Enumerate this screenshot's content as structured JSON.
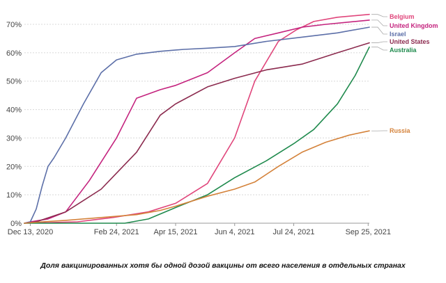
{
  "caption": "Доля вакцинированных хотя бы одной дозой вакцины от всего населения в отдельных странах",
  "chart_data": {
    "type": "line",
    "title": "",
    "xlabel": "",
    "ylabel": "",
    "x_ticks": [
      "Dec 13, 2020",
      "Feb 24, 2021",
      "Apr 15, 2021",
      "Jun 4, 2021",
      "Jul 24, 2021",
      "Sep 25, 2021"
    ],
    "x_tick_days": [
      0,
      73,
      123,
      173,
      223,
      286
    ],
    "y_ticks": [
      "0%",
      "10%",
      "20%",
      "30%",
      "40%",
      "50%",
      "60%",
      "70%"
    ],
    "ylim": [
      0,
      72
    ],
    "xlim": [
      -5,
      287
    ],
    "grid": "horizontal dotted",
    "series": [
      {
        "name": "Belgium",
        "color": "#e0457b",
        "x": [
          -5,
          40,
          70,
          100,
          123,
          150,
          173,
          190,
          210,
          225,
          240,
          260,
          287
        ],
        "y": [
          0,
          0.5,
          2,
          4,
          7,
          14,
          30,
          50,
          64,
          68,
          71,
          72.5,
          73.5
        ]
      },
      {
        "name": "United Kingdom",
        "color": "#c4237e",
        "x": [
          -5,
          0,
          15,
          30,
          50,
          73,
          90,
          110,
          123,
          150,
          173,
          190,
          210,
          230,
          250,
          287
        ],
        "y": [
          0,
          0.5,
          1.5,
          4,
          15,
          30,
          44,
          47,
          48.5,
          53,
          60,
          65,
          67,
          69,
          70,
          71.5
        ]
      },
      {
        "name": "Israel",
        "color": "#5c6fa8",
        "x": [
          -5,
          0,
          5,
          10,
          15,
          20,
          30,
          45,
          60,
          73,
          90,
          110,
          130,
          150,
          173,
          200,
          230,
          260,
          287
        ],
        "y": [
          0,
          0.5,
          5,
          13,
          20,
          23,
          30,
          42,
          53,
          57.5,
          59.5,
          60.5,
          61.2,
          61.6,
          62.2,
          64,
          65.5,
          67,
          69
        ]
      },
      {
        "name": "United States",
        "color": "#8b2a4e",
        "x": [
          -5,
          5,
          30,
          60,
          90,
          110,
          123,
          150,
          173,
          200,
          230,
          260,
          287
        ],
        "y": [
          0,
          0.5,
          4,
          12,
          25,
          38,
          42,
          48,
          51,
          54,
          56,
          60,
          63.5
        ]
      },
      {
        "name": "Australia",
        "color": "#1f8a4d",
        "x": [
          -5,
          80,
          100,
          123,
          150,
          173,
          200,
          223,
          240,
          260,
          275,
          287
        ],
        "y": [
          0,
          0,
          1.5,
          5.5,
          10,
          16,
          22,
          28,
          33,
          42,
          52,
          62
        ]
      },
      {
        "name": "Russia",
        "color": "#d4823a",
        "x": [
          -5,
          10,
          30,
          60,
          90,
          110,
          123,
          150,
          173,
          190,
          210,
          230,
          250,
          270,
          287
        ],
        "y": [
          0,
          0.5,
          1,
          2,
          3,
          4.5,
          6,
          9.5,
          12,
          14.5,
          20,
          25,
          28.5,
          31,
          32.5
        ]
      }
    ]
  }
}
